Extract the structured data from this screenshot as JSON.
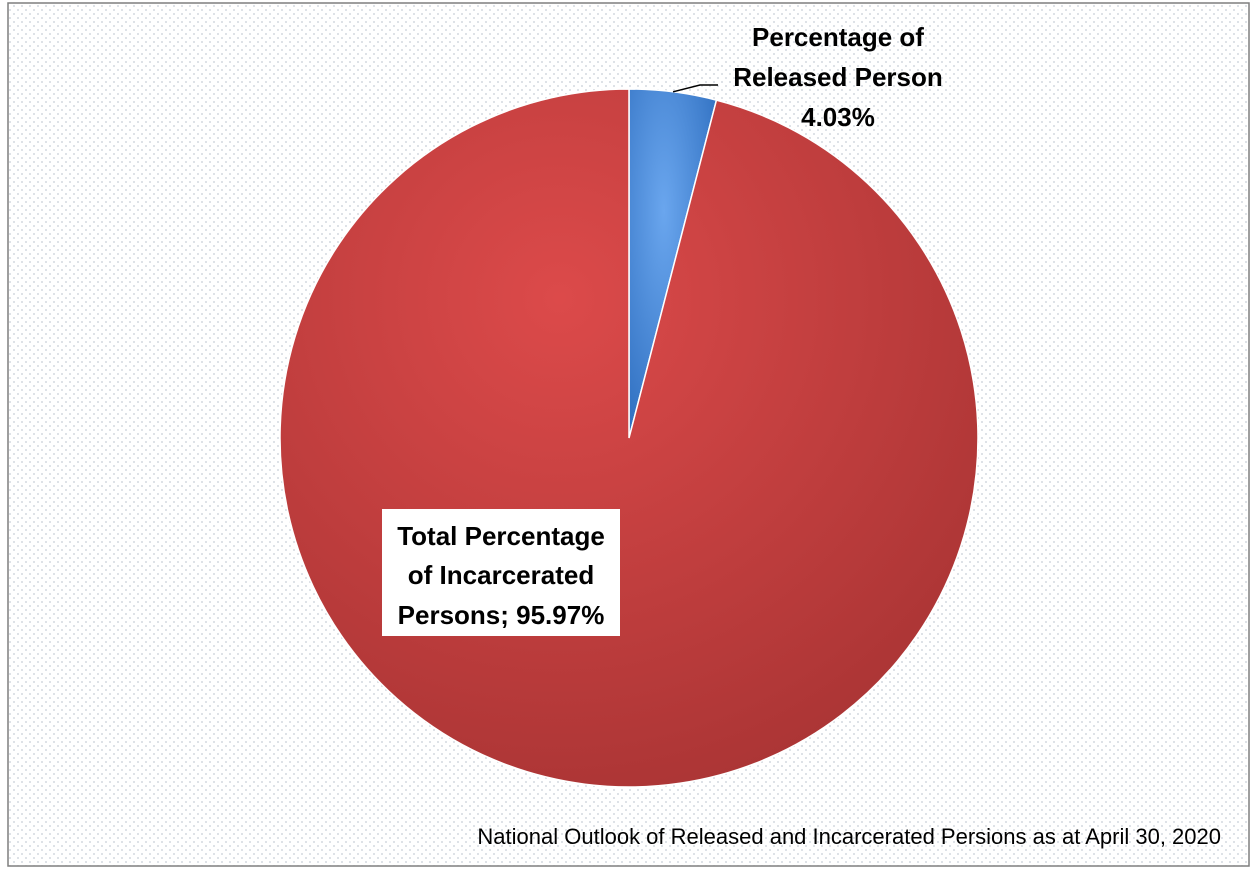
{
  "chart_data": {
    "type": "pie",
    "title": "",
    "caption": "National Outlook  of  Released and Incarcerated Persions as at April 30, 2020",
    "slices": [
      {
        "label_lines": [
          "Percentage of",
          "Released Person",
          "4.03%"
        ],
        "value": 4.03,
        "color": "#4A86D2"
      },
      {
        "label_lines": [
          "Total Percentage",
          "of Incarcerated",
          "Persons; 95.97%"
        ],
        "value": 95.97,
        "color": "#D33F3F"
      }
    ],
    "start": "12 o'clock",
    "direction": "clockwise",
    "legend": "none"
  }
}
